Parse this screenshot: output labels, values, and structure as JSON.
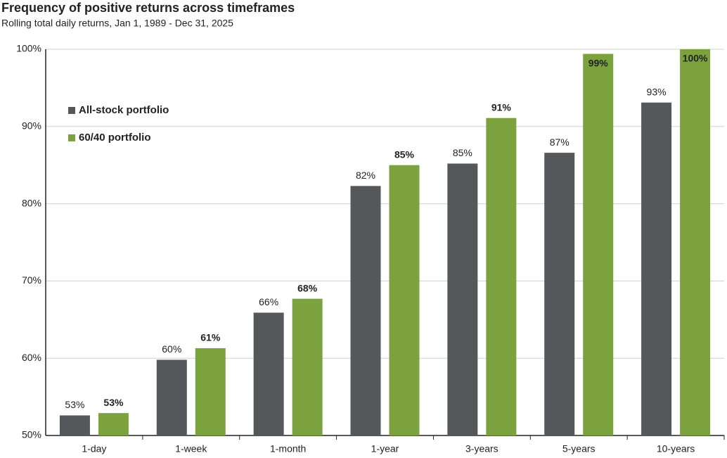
{
  "chart_data": {
    "type": "bar",
    "title": "Frequency of positive returns across timeframes",
    "subtitle": "Rolling total daily returns, Jan 1, 1989 - Dec 31, 2025",
    "categories": [
      "1-day",
      "1-week",
      "1-month",
      "1-year",
      "3-years",
      "5-years",
      "10-years"
    ],
    "series": [
      {
        "name": "All-stock portfolio",
        "color": "#54585a",
        "values": [
          52.6,
          59.8,
          65.9,
          82.3,
          85.2,
          86.6,
          93.1
        ],
        "value_labels": [
          "53%",
          "60%",
          "66%",
          "82%",
          "85%",
          "87%",
          "93%"
        ]
      },
      {
        "name": "60/40 portfolio",
        "color": "#7ba23f",
        "values": [
          52.9,
          61.3,
          67.7,
          85.0,
          91.1,
          99.4,
          100
        ],
        "value_labels": [
          "53%",
          "61%",
          "68%",
          "85%",
          "91%",
          "99%",
          "100%"
        ]
      }
    ],
    "ylim": [
      50,
      100
    ],
    "yticks": [
      {
        "value": 50,
        "label": "50%"
      },
      {
        "value": 60,
        "label": "60%"
      },
      {
        "value": 70,
        "label": "70%"
      },
      {
        "value": 80,
        "label": "80%"
      },
      {
        "value": 90,
        "label": "90%"
      },
      {
        "value": 100,
        "label": "100%"
      }
    ],
    "grid": true,
    "legend": "upper left"
  }
}
